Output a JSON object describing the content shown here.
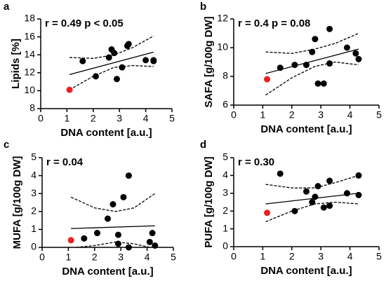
{
  "chart_data": [
    {
      "type": "scatter",
      "label": "a",
      "annotation": "r = 0.49 p < 0.05",
      "xlabel": "DNA content [a.u.]",
      "ylabel": "Lipids [%]",
      "xlim": [
        0,
        5
      ],
      "xticks": [
        0,
        1,
        2,
        3,
        4,
        5
      ],
      "ylim": [
        8,
        18
      ],
      "yticks": [
        8,
        10,
        12,
        14,
        16,
        18
      ],
      "x": [
        1.1,
        1.6,
        2.1,
        2.6,
        2.7,
        2.8,
        2.9,
        3.1,
        3.3,
        3.35,
        4.0,
        4.3,
        4.3
      ],
      "y": [
        10.1,
        13.3,
        11.6,
        13.7,
        14.6,
        14.2,
        11.3,
        12.6,
        15.0,
        15.2,
        13.4,
        13.3,
        13.4
      ],
      "colors": [
        "#e8211f",
        "#000000",
        "#000000",
        "#000000",
        "#000000",
        "#000000",
        "#000000",
        "#000000",
        "#000000",
        "#000000",
        "#000000",
        "#000000",
        "#000000"
      ],
      "lines": [
        {
          "dash": false,
          "x": [
            1.1,
            4.3
          ],
          "y": [
            11.8,
            14.3
          ]
        },
        {
          "dash": true,
          "x": [
            1.1,
            2,
            2.8,
            3.5,
            4.3
          ],
          "y": [
            13.7,
            13.6,
            14.0,
            14.8,
            16.1
          ]
        },
        {
          "dash": true,
          "x": [
            1.1,
            2,
            2.8,
            3.5,
            4.3
          ],
          "y": [
            10.1,
            11.6,
            12.6,
            12.8,
            12.7
          ]
        }
      ]
    },
    {
      "type": "scatter",
      "label": "b",
      "annotation": "r = 0.4 p = 0.08",
      "xlabel": "DNA content [a.u.]",
      "ylabel": "SAFA [g/100g DW]",
      "xlim": [
        0,
        5
      ],
      "xticks": [
        0,
        1,
        2,
        3,
        4,
        5
      ],
      "ylim": [
        6,
        12
      ],
      "yticks": [
        6,
        8,
        10,
        12
      ],
      "x": [
        1.15,
        1.6,
        2.1,
        2.5,
        2.7,
        2.8,
        2.9,
        3.1,
        3.3,
        3.3,
        3.9,
        4.2,
        4.3
      ],
      "y": [
        7.8,
        8.6,
        8.8,
        8.8,
        9.7,
        10.6,
        7.5,
        7.5,
        11.3,
        8.9,
        10.0,
        9.6,
        9.2
      ],
      "colors": [
        "#e8211f",
        "#000000",
        "#000000",
        "#000000",
        "#000000",
        "#000000",
        "#000000",
        "#000000",
        "#000000",
        "#000000",
        "#000000",
        "#000000",
        "#000000"
      ],
      "lines": [
        {
          "dash": false,
          "x": [
            1.1,
            4.3
          ],
          "y": [
            8.2,
            9.9
          ]
        },
        {
          "dash": true,
          "x": [
            1.1,
            2,
            2.8,
            3.5,
            4.3
          ],
          "y": [
            9.7,
            9.6,
            9.9,
            10.3,
            11.0
          ]
        },
        {
          "dash": true,
          "x": [
            1.1,
            2,
            2.8,
            3.5,
            4.3
          ],
          "y": [
            6.7,
            7.9,
            8.7,
            9.0,
            8.8
          ]
        }
      ]
    },
    {
      "type": "scatter",
      "label": "c",
      "annotation": "r = 0.04",
      "xlabel": "DNA content [a.u.]",
      "ylabel": "MUFA [g/100g DW]",
      "xlim": [
        0,
        5
      ],
      "xticks": [
        0,
        1,
        2,
        3,
        4,
        5
      ],
      "ylim": [
        0,
        5
      ],
      "yticks": [
        0,
        1,
        2,
        3,
        4,
        5
      ],
      "x": [
        1.1,
        1.6,
        2.1,
        2.5,
        2.7,
        2.9,
        2.9,
        3.1,
        3.3,
        3.3,
        4.1,
        4.2,
        4.3
      ],
      "y": [
        0.4,
        0.5,
        0.8,
        1.6,
        2.4,
        0.7,
        0.2,
        2.8,
        4.0,
        0.0,
        0.3,
        0.8,
        0.1
      ],
      "colors": [
        "#e8211f",
        "#000000",
        "#000000",
        "#000000",
        "#000000",
        "#000000",
        "#000000",
        "#000000",
        "#000000",
        "#000000",
        "#000000",
        "#000000",
        "#000000"
      ],
      "lines": [
        {
          "dash": false,
          "x": [
            1.1,
            4.3
          ],
          "y": [
            1.05,
            1.2
          ]
        },
        {
          "dash": true,
          "x": [
            1.1,
            2,
            2.8,
            3.5,
            4.3
          ],
          "y": [
            2.8,
            2.2,
            2.0,
            2.2,
            3.0
          ]
        },
        {
          "dash": true,
          "x": [
            1.3,
            2,
            2.8,
            3.5,
            4.1
          ],
          "y": [
            0.0,
            0.1,
            0.3,
            0.2,
            0.0
          ]
        }
      ]
    },
    {
      "type": "scatter",
      "label": "d",
      "annotation": "r = 0.30",
      "xlabel": "DNA content [a.u.]",
      "ylabel": "PUFA [g/100g DW]",
      "xlim": [
        0,
        5
      ],
      "xticks": [
        0,
        1,
        2,
        3,
        4,
        5
      ],
      "ylim": [
        0,
        5
      ],
      "yticks": [
        0,
        1,
        2,
        3,
        4,
        5
      ],
      "x": [
        1.15,
        1.6,
        2.1,
        2.5,
        2.7,
        2.8,
        2.9,
        3.1,
        3.3,
        3.3,
        3.9,
        4.3,
        4.3
      ],
      "y": [
        1.9,
        4.1,
        2.0,
        3.1,
        2.5,
        2.8,
        3.4,
        2.2,
        3.7,
        2.3,
        3.0,
        4.0,
        2.9
      ],
      "colors": [
        "#e8211f",
        "#000000",
        "#000000",
        "#000000",
        "#000000",
        "#000000",
        "#000000",
        "#000000",
        "#000000",
        "#000000",
        "#000000",
        "#000000",
        "#000000"
      ],
      "lines": [
        {
          "dash": false,
          "x": [
            1.1,
            4.3
          ],
          "y": [
            2.4,
            3.0
          ]
        },
        {
          "dash": true,
          "x": [
            1.1,
            2,
            2.8,
            3.5,
            4.3
          ],
          "y": [
            3.5,
            3.3,
            3.3,
            3.6,
            4.0
          ]
        },
        {
          "dash": true,
          "x": [
            1.1,
            2,
            2.8,
            3.5,
            4.3
          ],
          "y": [
            1.4,
            2.0,
            2.4,
            2.5,
            2.4
          ]
        }
      ]
    }
  ]
}
